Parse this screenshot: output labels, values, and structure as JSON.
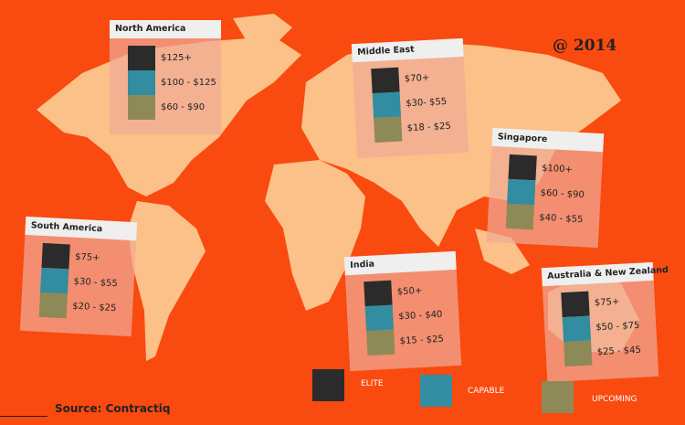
{
  "stamp": "@ 2014",
  "regions": [
    {
      "name": "North America",
      "rates": [
        "$125+",
        "$100 - $125",
        "$60 - $90"
      ]
    },
    {
      "name": "Middle East",
      "rates": [
        "$70+",
        "$30- $55",
        "$18 - $25"
      ]
    },
    {
      "name": "Singapore",
      "rates": [
        "$100+",
        "$60 - $90",
        "$40 - $55"
      ]
    },
    {
      "name": "South America",
      "rates": [
        "$75+",
        "$30 - $55",
        "$20 - $25"
      ]
    },
    {
      "name": "India",
      "rates": [
        "$50+",
        "$30 - $40",
        "$15 - $25"
      ]
    },
    {
      "name": "Australia & New Zealand",
      "rates": [
        "$75+",
        "$50 - $75",
        "$25 - $45"
      ]
    }
  ],
  "legend": [
    {
      "label": "ELITE",
      "color": "#2b2b2b"
    },
    {
      "label": "CAPABLE",
      "color": "#318d9f"
    },
    {
      "label": "UPCOMING",
      "color": "#8d8a58"
    }
  ],
  "source": "Source: Contractiq"
}
